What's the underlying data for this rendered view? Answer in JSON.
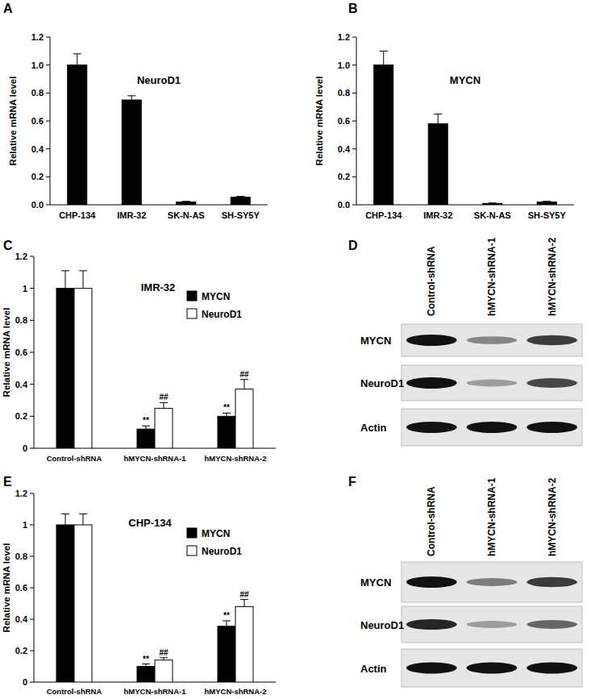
{
  "chart_data": [
    {
      "type": "bar",
      "panel": "A",
      "title": "NeuroD1",
      "ylabel": "Relative mRNA level",
      "categories": [
        "CHP-134",
        "IMR-32",
        "SK-N-AS",
        "SH-SY5Y"
      ],
      "values": [
        1.0,
        0.75,
        0.02,
        0.055
      ],
      "errors": [
        0.08,
        0.03,
        0.005,
        0.005
      ],
      "color": "#000000",
      "ylim": [
        0,
        1.2
      ],
      "yticks": [
        {
          "value": 0,
          "label": "0.0"
        },
        0.2,
        0.4,
        0.6,
        0.8,
        {
          "value": 1,
          "label": "1.0"
        },
        1.2
      ],
      "grid": false
    },
    {
      "type": "bar",
      "panel": "B",
      "title": "MYCN",
      "ylabel": "Relative mRNA level",
      "categories": [
        "CHP-134",
        "IMR-32",
        "SK-N-AS",
        "SH-SY5Y"
      ],
      "values": [
        1.0,
        0.58,
        0.01,
        0.02
      ],
      "errors": [
        0.1,
        0.07,
        0.003,
        0.005
      ],
      "color": "#000000",
      "ylim": [
        0,
        1.2
      ],
      "yticks": [
        {
          "value": 0,
          "label": "0.0"
        },
        0.2,
        0.4,
        0.6,
        0.8,
        {
          "value": 1,
          "label": "1.0"
        },
        1.2
      ],
      "grid": false
    },
    {
      "type": "bar",
      "panel": "C",
      "title": "IMR-32",
      "ylabel": "Relative mRNA level",
      "categories": [
        "Control-shRNA",
        "hMYCN-shRNA-1",
        "hMYCN-shRNA-2"
      ],
      "series": [
        {
          "name": "MYCN",
          "color": "#000000",
          "values": [
            1.0,
            0.12,
            0.2
          ],
          "errors": [
            0.11,
            0.02,
            0.02
          ],
          "significance": [
            null,
            "**",
            "**"
          ]
        },
        {
          "name": "NeuroD1",
          "color": "#ffffff",
          "values": [
            1.0,
            0.25,
            0.37
          ],
          "errors": [
            0.11,
            0.035,
            0.06
          ],
          "significance": [
            null,
            "##",
            "##"
          ]
        }
      ],
      "ylim": [
        0,
        1.2
      ],
      "yticks": [
        0,
        0.2,
        0.4,
        0.6,
        0.8,
        1,
        1.2
      ],
      "grid": false,
      "legend": "right"
    },
    {
      "type": "bar",
      "panel": "E",
      "title": "CHP-134",
      "ylabel": "Relative mRNA level",
      "categories": [
        "Control-shRNA",
        "hMYCN-shRNA-1",
        "hMYCN-shRNA-2"
      ],
      "series": [
        {
          "name": "MYCN",
          "color": "#000000",
          "values": [
            1.0,
            0.1,
            0.355
          ],
          "errors": [
            0.07,
            0.015,
            0.035
          ],
          "significance": [
            null,
            "**",
            "**"
          ]
        },
        {
          "name": "NeuroD1",
          "color": "#ffffff",
          "values": [
            1.0,
            0.14,
            0.48
          ],
          "errors": [
            0.07,
            0.015,
            0.045
          ],
          "significance": [
            null,
            "##",
            "##"
          ]
        }
      ],
      "ylim": [
        0,
        1.2
      ],
      "yticks": [
        0,
        0.2,
        0.4,
        0.6,
        0.8,
        1,
        1.2
      ],
      "grid": false,
      "legend": "right"
    }
  ],
  "blots": [
    {
      "panel": "D",
      "lanes": [
        "Control-shRNA",
        "hMYCN-shRNA-1",
        "hMYCN-shRNA-2"
      ],
      "rows": [
        {
          "name": "MYCN",
          "bands": [
            1,
            0.45,
            0.8
          ]
        },
        {
          "name": "NeuroD1",
          "bands": [
            1,
            0.35,
            0.75
          ]
        },
        {
          "name": "Actin",
          "bands": [
            1,
            1,
            1
          ]
        }
      ]
    },
    {
      "panel": "F",
      "lanes": [
        "Control-shRNA",
        "hMYCN-shRNA-1",
        "hMYCN-shRNA-2"
      ],
      "rows": [
        {
          "name": "MYCN",
          "bands": [
            1,
            0.5,
            0.8
          ]
        },
        {
          "name": "NeuroD1",
          "bands": [
            0.9,
            0.35,
            0.6
          ]
        },
        {
          "name": "Actin",
          "bands": [
            1,
            1,
            1
          ]
        }
      ]
    }
  ]
}
